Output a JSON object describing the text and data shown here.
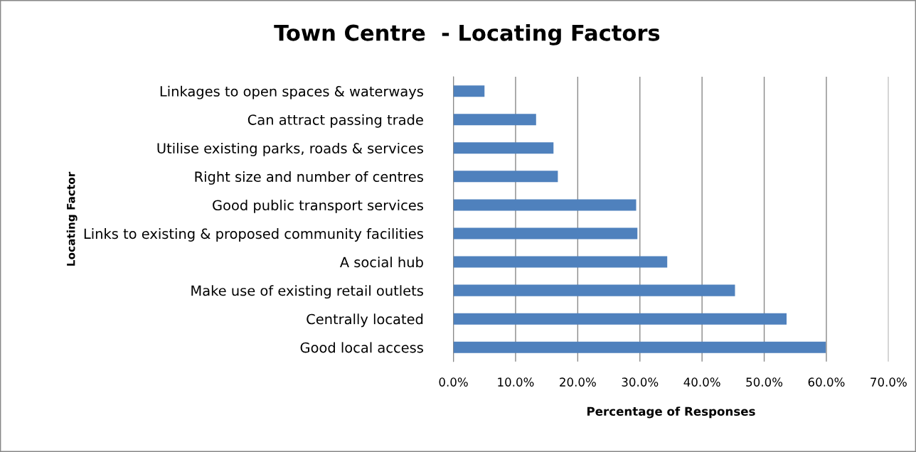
{
  "chart_data": {
    "type": "bar",
    "orientation": "horizontal",
    "title": "Town Centre  - Locating Factors",
    "xlabel": "Percentage of Responses",
    "ylabel": "Locating Factor",
    "categories": [
      "Linkages to open spaces & waterways",
      "Can attract passing trade",
      "Utilise existing parks, roads & services",
      "Right size and number of centres",
      "Good public transport services",
      "Links to existing & proposed community facilities",
      "A social hub",
      "Make use of existing retail outlets",
      "Centrally located",
      "Good local access"
    ],
    "values": [
      5.0,
      13.3,
      16.1,
      16.8,
      29.4,
      29.6,
      34.4,
      45.3,
      53.6,
      59.9
    ],
    "color": "#4f81bd",
    "xlim": [
      0,
      70
    ],
    "xticks": [
      {
        "value": 0,
        "label": "0.0%"
      },
      {
        "value": 10,
        "label": "10.0%"
      },
      {
        "value": 20,
        "label": "20.0%"
      },
      {
        "value": 30,
        "label": "30.0%"
      },
      {
        "value": 40,
        "label": "40.0%"
      },
      {
        "value": 50,
        "label": "50.0%"
      },
      {
        "value": 60,
        "label": "60.0%"
      },
      {
        "value": 70,
        "label": "70.0%"
      }
    ],
    "grid": "x",
    "legend": false
  }
}
